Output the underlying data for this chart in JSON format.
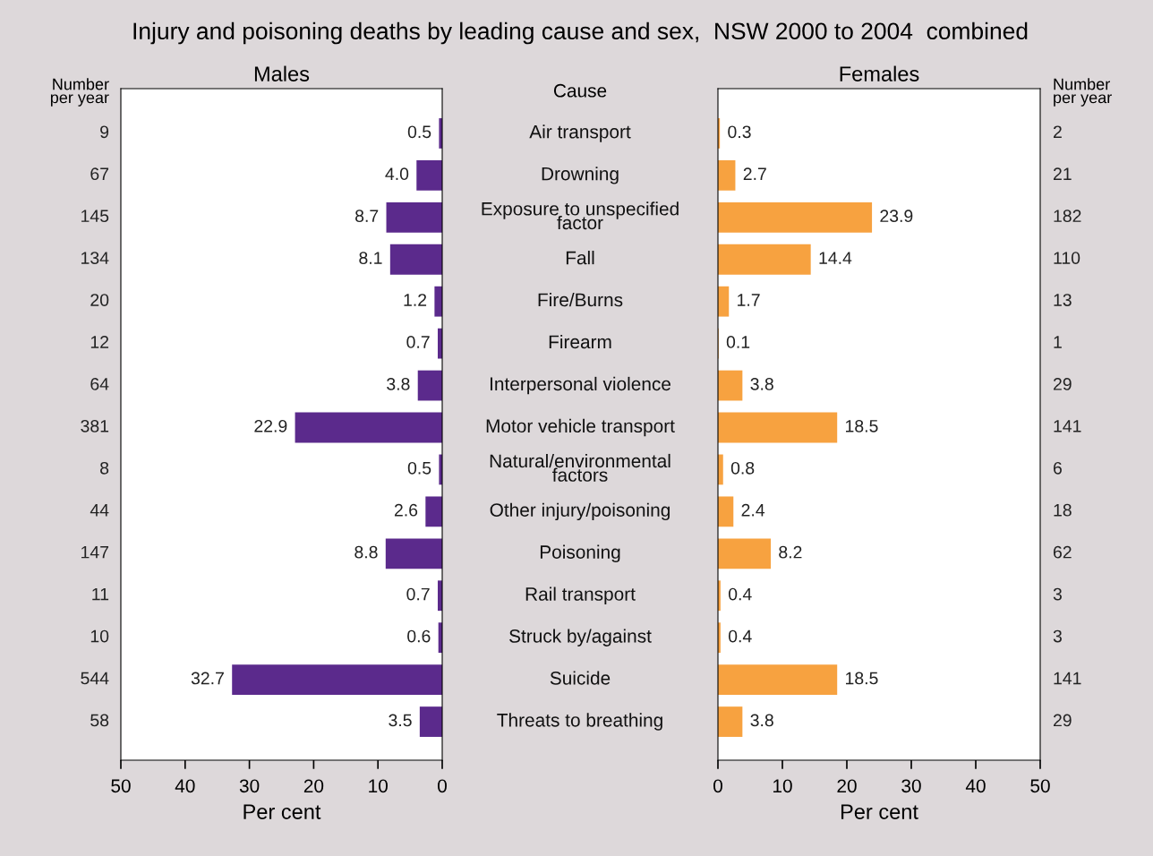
{
  "chart_data": [
    {
      "type": "other",
      "title": "Injury and poisoning deaths by leading cause and sex,  NSW 2000 to 2004  combined",
      "subtitle": "Number per year",
      "annotations": [
        "9",
        "67",
        "145",
        "134",
        "20",
        "12",
        "64",
        "381",
        "8",
        "44",
        "147",
        "11",
        "10",
        "544",
        "58"
      ]
    },
    {
      "type": "bar",
      "orientation": "horizontal",
      "title": "Males",
      "xlabel": "Per cent",
      "ylabel": "Cause",
      "categories": [
        "Air transport",
        "Drowning",
        "Exposure to unspecified factor",
        "Fall",
        "Fire/Burns",
        "Firearm",
        "Interpersonal violence",
        "Motor vehicle transport",
        "Natural/environmental factors",
        "Other injury/poisoning",
        "Poisoning",
        "Rail transport",
        "Struck by/against",
        "Suicide",
        "Threats to breathing"
      ],
      "values": [
        0.5,
        4.0,
        8.7,
        8.1,
        1.2,
        0.7,
        3.8,
        22.9,
        0.5,
        2.6,
        8.8,
        0.7,
        0.6,
        32.7,
        3.5
      ],
      "value_labels": [
        "0.5",
        "4.0",
        "8.7",
        "8.1",
        "1.2",
        "0.7",
        "3.8",
        "22.9",
        "0.5",
        "2.6",
        "8.8",
        "0.7",
        "0.6",
        "32.7",
        "3.5"
      ],
      "color": "#5b2a8c",
      "xlim": [
        50,
        0
      ],
      "xticks": [
        50,
        40,
        30,
        20,
        10,
        0
      ],
      "grid": false,
      "legend": false
    },
    {
      "type": "bar",
      "orientation": "horizontal",
      "title": "Females",
      "xlabel": "Per cent",
      "values": [
        0.3,
        2.7,
        23.9,
        14.4,
        1.7,
        0.1,
        3.8,
        18.5,
        0.8,
        2.4,
        8.2,
        0.4,
        0.4,
        18.5,
        3.8
      ],
      "value_labels": [
        "0.3",
        "2.7",
        "23.9",
        "14.4",
        "1.7",
        "0.1",
        "3.8",
        "18.5",
        "0.8",
        "2.4",
        "8.2",
        "0.4",
        "0.4",
        "18.5",
        "3.8"
      ],
      "color": "#f7a240",
      "xlim": [
        0,
        50
      ],
      "xticks": [
        0,
        10,
        20,
        30,
        40,
        50
      ],
      "grid": false,
      "legend": false
    },
    {
      "type": "other",
      "subtitle": "Number per year",
      "annotations": [
        "2",
        "21",
        "182",
        "110",
        "13",
        "1",
        "29",
        "141",
        "6",
        "18",
        "62",
        "3",
        "3",
        "141",
        "29"
      ]
    }
  ]
}
